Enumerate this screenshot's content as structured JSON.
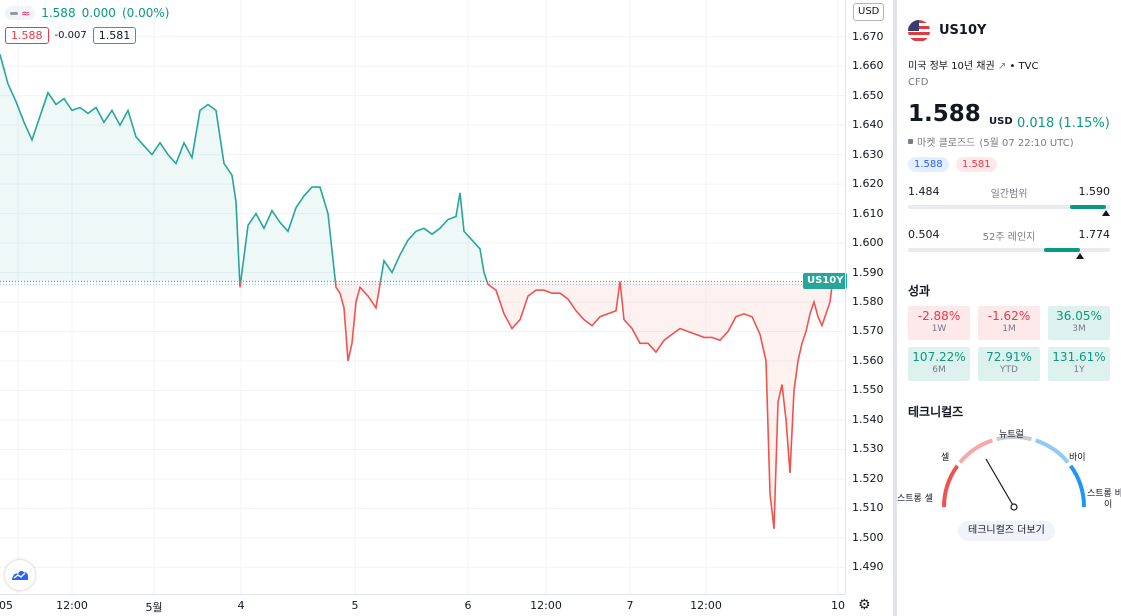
{
  "legend": {
    "pill_wave": "≈",
    "price": "1.588",
    "change": "0.000",
    "change_pct": "(0.00%)",
    "bid": "1.588",
    "spread": "-0.007",
    "ask": "1.581"
  },
  "price_scale": {
    "currency": "USD",
    "ticks": [
      "1.670",
      "1.660",
      "1.650",
      "1.640",
      "1.630",
      "1.620",
      "1.610",
      "1.600",
      "1.590",
      "1.580",
      "1.570",
      "1.560",
      "1.550",
      "1.540",
      "1.530",
      "1.520",
      "1.510",
      "1.500",
      "1.490"
    ]
  },
  "time_scale": {
    "ticks": [
      "05",
      "12:00",
      "5월",
      "4",
      "5",
      "6",
      "12:00",
      "7",
      "12:00",
      "10"
    ]
  },
  "series_label": "US10Y",
  "chart_data": {
    "type": "area",
    "symbol": "US10Y",
    "ylim": [
      1.485,
      1.675
    ],
    "base_value": 1.587,
    "x_ticks": [
      "05",
      "12:00",
      "5월",
      "4",
      "5",
      "6",
      "12:00",
      "7",
      "12:00",
      "10"
    ],
    "colors": {
      "above": "#26a69a",
      "below": "#ef5350"
    },
    "x": [
      0,
      8,
      16,
      24,
      32,
      40,
      48,
      56,
      64,
      72,
      80,
      88,
      96,
      104,
      112,
      120,
      128,
      136,
      144,
      152,
      160,
      168,
      176,
      184,
      192,
      200,
      208,
      216,
      224,
      232,
      236,
      240,
      248,
      256,
      264,
      272,
      280,
      288,
      296,
      304,
      312,
      320,
      328,
      336,
      340,
      344,
      348,
      352,
      356,
      360,
      368,
      376,
      384,
      392,
      400,
      408,
      416,
      424,
      432,
      440,
      448,
      456,
      460,
      464,
      472,
      480,
      484,
      488,
      496,
      504,
      512,
      520,
      528,
      536,
      544,
      552,
      560,
      568,
      576,
      584,
      592,
      600,
      608,
      616,
      620,
      624,
      632,
      640,
      648,
      656,
      664,
      672,
      680,
      688,
      696,
      704,
      712,
      720,
      728,
      736,
      744,
      752,
      760,
      766,
      770,
      774,
      778,
      782,
      786,
      790,
      794,
      798,
      802,
      806,
      810,
      814,
      818,
      822,
      826,
      830,
      833
    ],
    "y": [
      1.664,
      1.654,
      1.648,
      1.641,
      1.635,
      1.643,
      1.651,
      1.647,
      1.649,
      1.645,
      1.646,
      1.644,
      1.646,
      1.641,
      1.645,
      1.64,
      1.645,
      1.636,
      1.633,
      1.63,
      1.634,
      1.63,
      1.627,
      1.634,
      1.629,
      1.645,
      1.647,
      1.645,
      1.627,
      1.623,
      1.614,
      1.585,
      1.606,
      1.61,
      1.605,
      1.611,
      1.607,
      1.604,
      1.612,
      1.616,
      1.619,
      1.619,
      1.61,
      1.585,
      1.583,
      1.578,
      1.56,
      1.566,
      1.58,
      1.585,
      1.582,
      1.578,
      1.594,
      1.59,
      1.596,
      1.601,
      1.604,
      1.605,
      1.603,
      1.605,
      1.608,
      1.609,
      1.617,
      1.604,
      1.601,
      1.598,
      1.59,
      1.586,
      1.584,
      1.576,
      1.571,
      1.574,
      1.582,
      1.584,
      1.584,
      1.583,
      1.583,
      1.581,
      1.577,
      1.574,
      1.572,
      1.575,
      1.576,
      1.577,
      1.587,
      1.574,
      1.571,
      1.566,
      1.566,
      1.563,
      1.567,
      1.569,
      1.571,
      1.57,
      1.569,
      1.568,
      1.568,
      1.567,
      1.57,
      1.575,
      1.576,
      1.575,
      1.569,
      1.56,
      1.515,
      1.503,
      1.546,
      1.552,
      1.54,
      1.522,
      1.55,
      1.56,
      1.566,
      1.57,
      1.576,
      1.58,
      1.575,
      1.572,
      1.576,
      1.58,
      1.588
    ]
  },
  "panel": {
    "symbol": "US10Y",
    "description": "미국 정부 10년 채권",
    "ext_icon": "↗",
    "source": "• TVC",
    "type": "CFD",
    "price": "1.588",
    "currency": "USD",
    "change": "0.018 (1.15%)",
    "market_status": "마켓 클로즈드",
    "market_time": "(5월 07 22:10 UTC)",
    "bid": "1.588",
    "ask": "1.581",
    "day_range": {
      "low": "1.484",
      "label": "일간범위",
      "high": "1.590",
      "position": 0.98
    },
    "week52_range": {
      "low": "0.504",
      "label": "52주 레인지",
      "high": "1.774",
      "position": 0.85
    },
    "performance_title": "성과",
    "performance": [
      {
        "value": "-2.88%",
        "period": "1W",
        "dir": "neg"
      },
      {
        "value": "-1.62%",
        "period": "1M",
        "dir": "neg"
      },
      {
        "value": "36.05%",
        "period": "3M",
        "dir": "pos"
      },
      {
        "value": "107.22%",
        "period": "6M",
        "dir": "pos"
      },
      {
        "value": "72.91%",
        "period": "YTD",
        "dir": "pos"
      },
      {
        "value": "131.61%",
        "period": "1Y",
        "dir": "pos"
      }
    ],
    "technicals_title": "테크니컬즈",
    "gauge": {
      "neutral": "뉴트럴",
      "sell": "셀",
      "buy": "바이",
      "strong_sell": "스트롱 셀",
      "strong_buy_1": "스트롱 바",
      "strong_buy_2": "이",
      "needle_value": 0.22
    },
    "technicals_more": "테크니컬즈 더보기"
  },
  "colors": {
    "up": "#089981",
    "down": "#f23645",
    "line_up": "#26a69a",
    "line_down": "#ef5350",
    "accent_blue": "#2962ff"
  }
}
